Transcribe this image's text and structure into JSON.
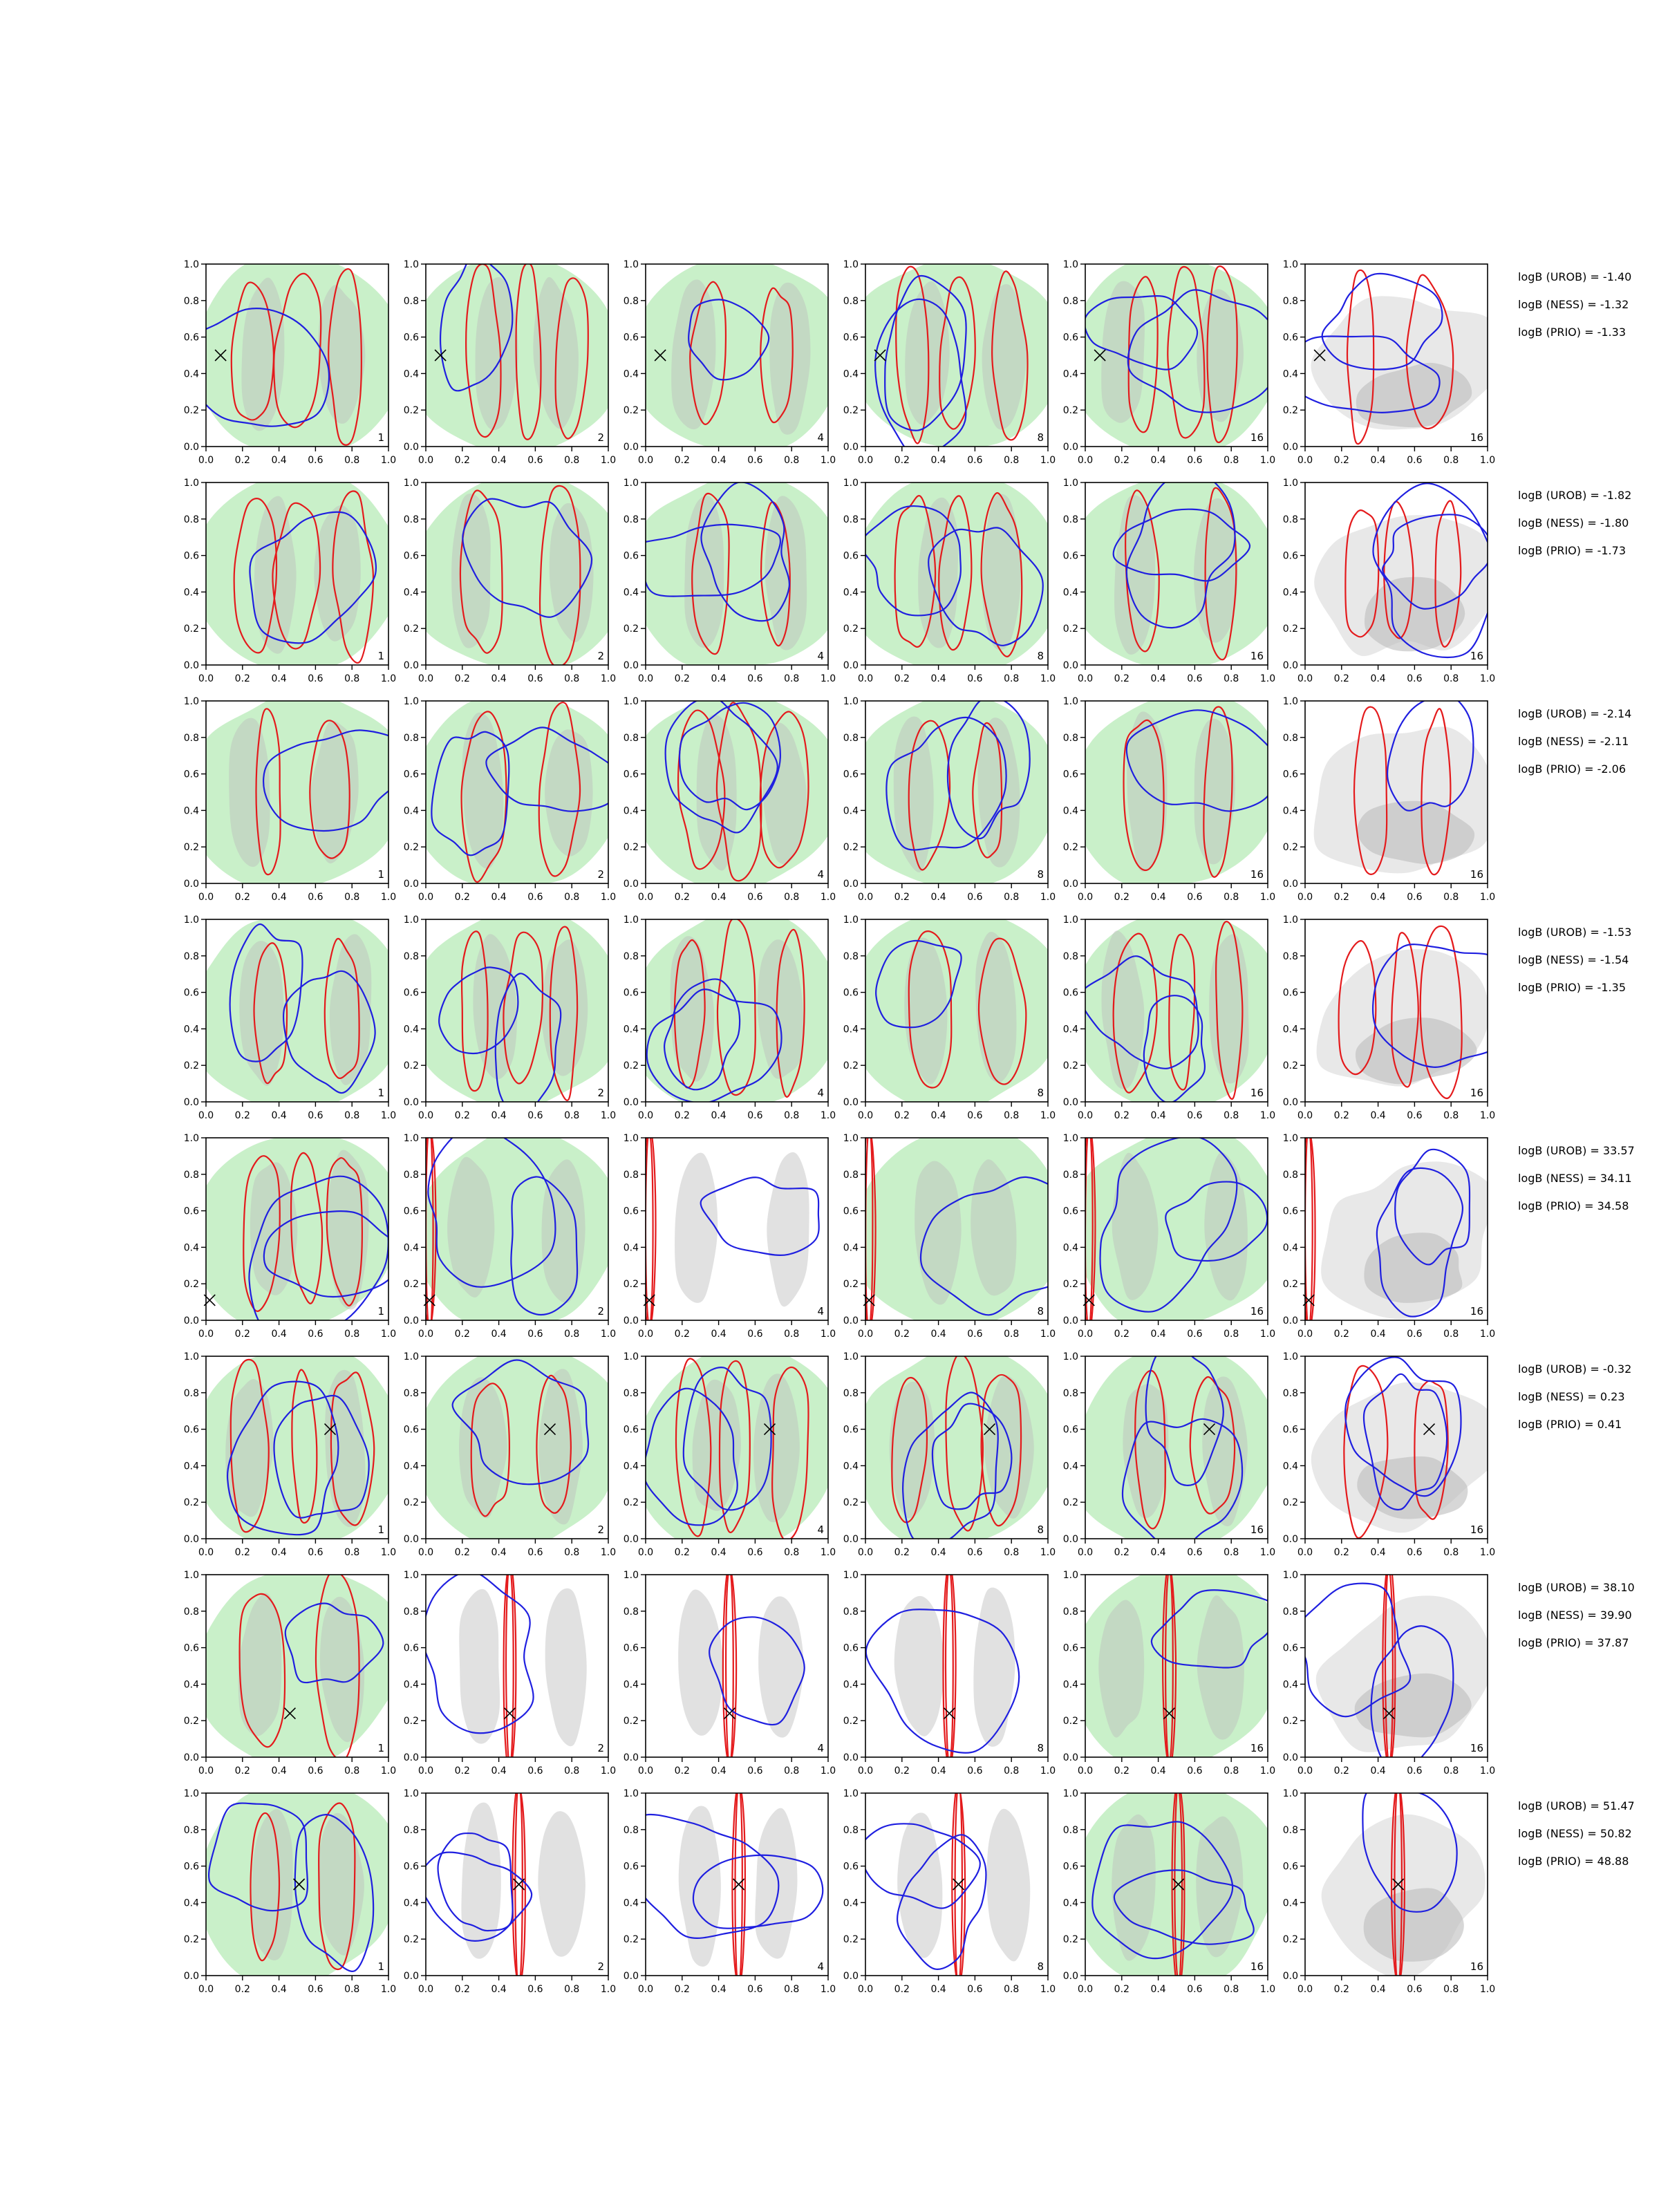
{
  "figure": {
    "columns": [
      {
        "label": "1"
      },
      {
        "label": "2"
      },
      {
        "label": "4"
      },
      {
        "label": "8"
      },
      {
        "label": "16"
      },
      {
        "label": "16"
      }
    ],
    "axes": {
      "xlim": [
        0,
        1
      ],
      "ylim": [
        0,
        1
      ],
      "xticks": [
        "0.0",
        "0.2",
        "0.4",
        "0.6",
        "0.8",
        "1.0"
      ],
      "yticks": [
        "0.0",
        "0.2",
        "0.4",
        "0.6",
        "0.8",
        "1.0"
      ]
    },
    "colors": {
      "red": "#e41a1c",
      "blue": "#1f1fe0",
      "green_fill": "#c9f0c9",
      "grey_fill": "#bdbdbd",
      "light_grey_fill": "#e8e8e8"
    },
    "rows": [
      {
        "marker": [
          0.08,
          0.5
        ],
        "logB": [
          "logB (UROB) = -1.40",
          "logB (NESS) = -1.32",
          "logB (PRIO) = -1.33"
        ]
      },
      {
        "marker": null,
        "logB": [
          "logB (UROB) = -1.82",
          "logB (NESS) = -1.80",
          "logB (PRIO) = -1.73"
        ]
      },
      {
        "marker": null,
        "logB": [
          "logB (UROB) = -2.14",
          "logB (NESS) = -2.11",
          "logB (PRIO) = -2.06"
        ]
      },
      {
        "marker": null,
        "logB": [
          "logB (UROB) = -1.53",
          "logB (NESS) = -1.54",
          "logB (PRIO) = -1.35"
        ]
      },
      {
        "marker": [
          0.02,
          0.11
        ],
        "logB": [
          "logB (UROB) = 33.57",
          "logB (NESS) = 34.11",
          "logB (PRIO) = 34.58"
        ]
      },
      {
        "marker": [
          0.68,
          0.6
        ],
        "logB": [
          "logB (UROB) = -0.32",
          "logB (NESS) = 0.23",
          "logB (PRIO) = 0.41"
        ]
      },
      {
        "marker": [
          0.46,
          0.24
        ],
        "logB": [
          "logB (UROB) = 38.10",
          "logB (NESS) = 39.90",
          "logB (PRIO) = 37.87"
        ]
      },
      {
        "marker": [
          0.51,
          0.5
        ],
        "logB": [
          "logB (UROB) = 51.47",
          "logB (NESS) = 50.82",
          "logB (PRIO) = 48.88"
        ]
      }
    ]
  },
  "chart_data": {
    "type": "contour",
    "rows": 8,
    "columns": 6,
    "xlim": [
      0,
      1
    ],
    "ylim": [
      0,
      1
    ],
    "panel_labels": [
      "1",
      "2",
      "4",
      "8",
      "16",
      "16"
    ],
    "markers": [
      [
        0.08,
        0.5
      ],
      null,
      null,
      null,
      [
        0.02,
        0.11
      ],
      [
        0.68,
        0.6
      ],
      [
        0.46,
        0.24
      ],
      [
        0.51,
        0.5
      ]
    ],
    "logB": [
      {
        "UROB": -1.4,
        "NESS": -1.32,
        "PRIO": -1.33
      },
      {
        "UROB": -1.82,
        "NESS": -1.8,
        "PRIO": -1.73
      },
      {
        "UROB": -2.14,
        "NESS": -2.11,
        "PRIO": -2.06
      },
      {
        "UROB": -1.53,
        "NESS": -1.54,
        "PRIO": -1.35
      },
      {
        "UROB": 33.57,
        "NESS": 34.11,
        "PRIO": 34.58
      },
      {
        "UROB": -0.32,
        "NESS": 0.23,
        "PRIO": 0.41
      },
      {
        "UROB": 38.1,
        "NESS": 39.9,
        "PRIO": 37.87
      },
      {
        "UROB": 51.47,
        "NESS": 50.82,
        "PRIO": 48.88
      }
    ]
  }
}
